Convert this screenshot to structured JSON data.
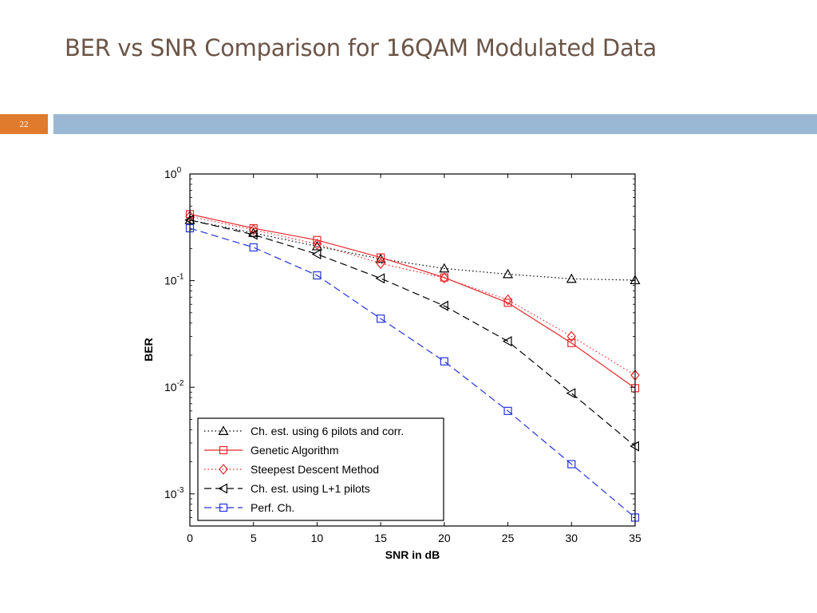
{
  "slide": {
    "title": "BER vs SNR Comparison for 16QAM Modulated Data",
    "number": "22",
    "colors": {
      "accent_orange": "#e07b2e",
      "bar_blue": "#9ab8d3",
      "title_color": "#6b5547"
    }
  },
  "chart_data": {
    "type": "line",
    "xlabel": "SNR in dB",
    "ylabel": "BER",
    "xlim": [
      0,
      35
    ],
    "ylim": [
      0.0005,
      1
    ],
    "yscale": "log",
    "grid": false,
    "legend_position": "bottom-left",
    "x_ticks": [
      "0",
      "5",
      "10",
      "15",
      "20",
      "25",
      "30",
      "35"
    ],
    "y_ticks": [
      {
        "base": "10",
        "exp": "0",
        "value": 1
      },
      {
        "base": "10",
        "exp": "-1",
        "value": 0.1
      },
      {
        "base": "10",
        "exp": "-2",
        "value": 0.01
      },
      {
        "base": "10",
        "exp": "-3",
        "value": 0.001
      }
    ],
    "x": [
      0,
      5,
      10,
      15,
      20,
      25,
      30,
      35
    ],
    "series": [
      {
        "name": "Ch. est. using 6 pilots and corr.",
        "color": "#000000",
        "dash": "dotted",
        "marker": "triangle-up",
        "values": [
          0.37,
          0.28,
          0.21,
          0.16,
          0.13,
          0.115,
          0.104,
          0.101
        ]
      },
      {
        "name": "Genetic Algorithm",
        "color": "#e8262b",
        "dash": "solid",
        "marker": "square",
        "values": [
          0.42,
          0.31,
          0.24,
          0.165,
          0.107,
          0.062,
          0.026,
          0.0098
        ]
      },
      {
        "name": "Steepest Descent Method",
        "color": "#e8262b",
        "dash": "dotted",
        "marker": "diamond",
        "values": [
          0.4,
          0.3,
          0.22,
          0.145,
          0.106,
          0.066,
          0.03,
          0.013
        ]
      },
      {
        "name": "Ch. est. using L+1 pilots",
        "color": "#000000",
        "dash": "dashed",
        "marker": "triangle-left",
        "values": [
          0.37,
          0.27,
          0.177,
          0.105,
          0.058,
          0.027,
          0.0088,
          0.0028
        ]
      },
      {
        "name": "Perf. Ch.",
        "color": "#2433e0",
        "dash": "dashed",
        "marker": "square",
        "values": [
          0.31,
          0.205,
          0.112,
          0.044,
          0.0175,
          0.006,
          0.0019,
          0.0006
        ]
      }
    ]
  }
}
